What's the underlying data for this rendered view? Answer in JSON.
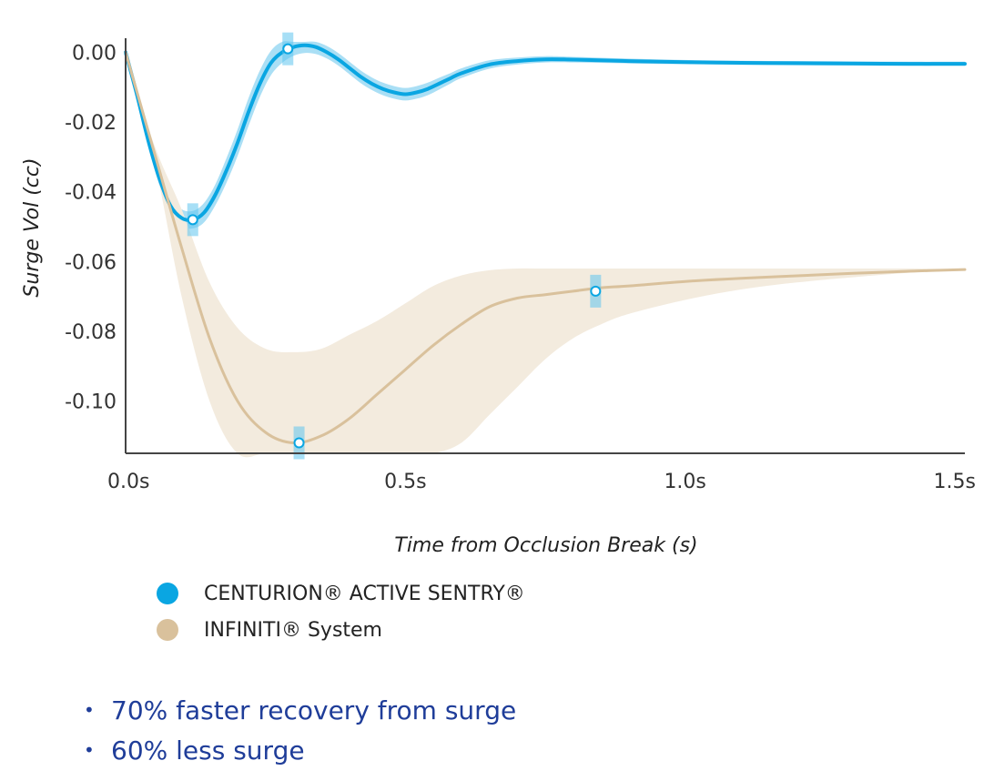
{
  "chart_data": {
    "type": "line",
    "xlabel": "Time from Occlusion Break (s)",
    "ylabel": "Surge Vol (cc)",
    "xlim": [
      0.0,
      1.5
    ],
    "ylim": [
      -0.115,
      0.003
    ],
    "x_ticks": [
      0.0,
      0.5,
      1.0,
      1.5
    ],
    "x_tick_labels": [
      "0.0s",
      "0.5s",
      "1.0s",
      "1.5s"
    ],
    "y_ticks": [
      0.0,
      -0.02,
      -0.04,
      -0.06,
      -0.08,
      -0.1
    ],
    "y_tick_labels": [
      "0.00",
      "-0.02",
      "-0.04",
      "-0.06",
      "-0.08",
      "-0.10"
    ],
    "grid": false,
    "legend_position": "bottom-left",
    "series": [
      {
        "name": "CENTURION® ACTIVE SENTRY®",
        "color": "#0aa6e2",
        "band_color": "#aadff5",
        "x": [
          0.0,
          0.02,
          0.04,
          0.06,
          0.08,
          0.1,
          0.12,
          0.14,
          0.16,
          0.18,
          0.2,
          0.22,
          0.24,
          0.26,
          0.28,
          0.3,
          0.32,
          0.34,
          0.36,
          0.38,
          0.4,
          0.42,
          0.44,
          0.46,
          0.48,
          0.5,
          0.52,
          0.54,
          0.56,
          0.58,
          0.6,
          0.65,
          0.7,
          0.75,
          0.8,
          0.9,
          1.0,
          1.1,
          1.2,
          1.3,
          1.4,
          1.5
        ],
        "y": [
          0.0,
          -0.012,
          -0.025,
          -0.036,
          -0.044,
          -0.0475,
          -0.048,
          -0.046,
          -0.041,
          -0.034,
          -0.026,
          -0.017,
          -0.009,
          -0.003,
          0.0,
          0.0015,
          0.002,
          0.0015,
          0.0,
          -0.002,
          -0.0045,
          -0.007,
          -0.009,
          -0.0105,
          -0.0115,
          -0.012,
          -0.0115,
          -0.0105,
          -0.009,
          -0.0075,
          -0.006,
          -0.0035,
          -0.0025,
          -0.002,
          -0.0021,
          -0.0025,
          -0.0028,
          -0.003,
          -0.0031,
          -0.0032,
          -0.0033,
          -0.0033
        ],
        "band_halfwidth": [
          0.0005,
          0.001,
          0.0015,
          0.002,
          0.0025,
          0.0025,
          0.0025,
          0.0028,
          0.003,
          0.0035,
          0.0038,
          0.004,
          0.0038,
          0.0035,
          0.003,
          0.0025,
          0.0022,
          0.002,
          0.0018,
          0.0018,
          0.0018,
          0.0018,
          0.0018,
          0.0018,
          0.0018,
          0.0018,
          0.0018,
          0.0018,
          0.0017,
          0.0015,
          0.0014,
          0.0012,
          0.001,
          0.0009,
          0.0008,
          0.0007,
          0.0006,
          0.0006,
          0.0006,
          0.0006,
          0.0006,
          0.0006
        ],
        "markers": [
          {
            "x": 0.12,
            "y": -0.048
          },
          {
            "x": 0.29,
            "y": 0.001
          }
        ]
      },
      {
        "name": "INFINITI® System",
        "color": "#d9c19c",
        "band_color": "#f3ebde",
        "x": [
          0.0,
          0.05,
          0.1,
          0.15,
          0.2,
          0.25,
          0.3,
          0.35,
          0.4,
          0.45,
          0.5,
          0.55,
          0.6,
          0.65,
          0.7,
          0.75,
          0.8,
          0.85,
          0.9,
          1.0,
          1.1,
          1.2,
          1.3,
          1.4,
          1.5
        ],
        "y": [
          0.0,
          -0.028,
          -0.056,
          -0.082,
          -0.1,
          -0.109,
          -0.112,
          -0.11,
          -0.105,
          -0.098,
          -0.091,
          -0.084,
          -0.078,
          -0.073,
          -0.0705,
          -0.0695,
          -0.0685,
          -0.0675,
          -0.067,
          -0.0657,
          -0.0648,
          -0.0641,
          -0.0634,
          -0.0628,
          -0.0623
        ],
        "band_low": [
          0.0,
          -0.03,
          -0.07,
          -0.1,
          -0.115,
          -0.115,
          -0.115,
          -0.115,
          -0.115,
          -0.115,
          -0.115,
          -0.115,
          -0.112,
          -0.104,
          -0.096,
          -0.088,
          -0.082,
          -0.078,
          -0.075,
          -0.071,
          -0.068,
          -0.066,
          -0.0645,
          -0.0632,
          -0.0623
        ],
        "band_high": [
          0.0,
          -0.026,
          -0.045,
          -0.066,
          -0.079,
          -0.085,
          -0.086,
          -0.085,
          -0.081,
          -0.077,
          -0.072,
          -0.067,
          -0.064,
          -0.0625,
          -0.062,
          -0.062,
          -0.062,
          -0.062,
          -0.062,
          -0.062,
          -0.062,
          -0.062,
          -0.062,
          -0.062,
          -0.0622
        ],
        "markers": [
          {
            "x": 0.31,
            "y": -0.112
          },
          {
            "x": 0.84,
            "y": -0.0685
          }
        ]
      }
    ]
  },
  "legend": {
    "items": [
      {
        "label": "CENTURION® ACTIVE SENTRY®",
        "color": "#0aa6e2"
      },
      {
        "label": "INFINITI® System",
        "color": "#d9c19c"
      }
    ]
  },
  "bullets": [
    {
      "dot": "•",
      "text": "70% faster recovery from surge"
    },
    {
      "dot": "•",
      "text": "60% less surge"
    }
  ]
}
